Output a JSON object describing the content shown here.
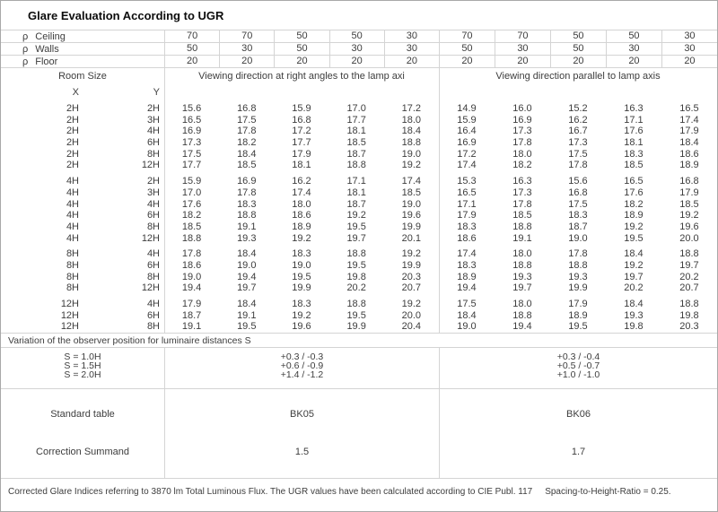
{
  "title": "Glare Evaluation According to UGR",
  "colors": {
    "border": "#d4d4d4",
    "outer_border": "#a8a8a8",
    "text": "#3d3d3d",
    "title_text": "#0d0d0d"
  },
  "reflectance": {
    "symbol": "ρ",
    "rows": [
      {
        "label": "Ceiling",
        "values": [
          "70",
          "70",
          "50",
          "50",
          "30",
          "70",
          "70",
          "50",
          "50",
          "30"
        ]
      },
      {
        "label": "Walls",
        "values": [
          "50",
          "30",
          "50",
          "30",
          "30",
          "50",
          "30",
          "50",
          "30",
          "30"
        ]
      },
      {
        "label": "Floor",
        "values": [
          "20",
          "20",
          "20",
          "20",
          "20",
          "20",
          "20",
          "20",
          "20",
          "20"
        ]
      }
    ]
  },
  "header": {
    "room_size": "Room Size",
    "x_label": "X",
    "y_label": "Y",
    "left_section_title": "Viewing direction at right angles to the lamp axi",
    "right_section_title": "Viewing direction parallel to lamp axis"
  },
  "ugr_groups": [
    {
      "rows": [
        {
          "x": "2H",
          "y": "2H",
          "ugr": [
            "15.6",
            "16.8",
            "15.9",
            "17.0",
            "17.2",
            "14.9",
            "16.0",
            "15.2",
            "16.3",
            "16.5"
          ]
        },
        {
          "x": "2H",
          "y": "3H",
          "ugr": [
            "16.5",
            "17.5",
            "16.8",
            "17.7",
            "18.0",
            "15.9",
            "16.9",
            "16.2",
            "17.1",
            "17.4"
          ]
        },
        {
          "x": "2H",
          "y": "4H",
          "ugr": [
            "16.9",
            "17.8",
            "17.2",
            "18.1",
            "18.4",
            "16.4",
            "17.3",
            "16.7",
            "17.6",
            "17.9"
          ]
        },
        {
          "x": "2H",
          "y": "6H",
          "ugr": [
            "17.3",
            "18.2",
            "17.7",
            "18.5",
            "18.8",
            "16.9",
            "17.8",
            "17.3",
            "18.1",
            "18.4"
          ]
        },
        {
          "x": "2H",
          "y": "8H",
          "ugr": [
            "17.5",
            "18.4",
            "17.9",
            "18.7",
            "19.0",
            "17.2",
            "18.0",
            "17.5",
            "18.3",
            "18.6"
          ]
        },
        {
          "x": "2H",
          "y": "12H",
          "ugr": [
            "17.7",
            "18.5",
            "18.1",
            "18.8",
            "19.2",
            "17.4",
            "18.2",
            "17.8",
            "18.5",
            "18.9"
          ]
        }
      ]
    },
    {
      "rows": [
        {
          "x": "4H",
          "y": "2H",
          "ugr": [
            "15.9",
            "16.9",
            "16.2",
            "17.1",
            "17.4",
            "15.3",
            "16.3",
            "15.6",
            "16.5",
            "16.8"
          ]
        },
        {
          "x": "4H",
          "y": "3H",
          "ugr": [
            "17.0",
            "17.8",
            "17.4",
            "18.1",
            "18.5",
            "16.5",
            "17.3",
            "16.8",
            "17.6",
            "17.9"
          ]
        },
        {
          "x": "4H",
          "y": "4H",
          "ugr": [
            "17.6",
            "18.3",
            "18.0",
            "18.7",
            "19.0",
            "17.1",
            "17.8",
            "17.5",
            "18.2",
            "18.5"
          ]
        },
        {
          "x": "4H",
          "y": "6H",
          "ugr": [
            "18.2",
            "18.8",
            "18.6",
            "19.2",
            "19.6",
            "17.9",
            "18.5",
            "18.3",
            "18.9",
            "19.2"
          ]
        },
        {
          "x": "4H",
          "y": "8H",
          "ugr": [
            "18.5",
            "19.1",
            "18.9",
            "19.5",
            "19.9",
            "18.3",
            "18.8",
            "18.7",
            "19.2",
            "19.6"
          ]
        },
        {
          "x": "4H",
          "y": "12H",
          "ugr": [
            "18.8",
            "19.3",
            "19.2",
            "19.7",
            "20.1",
            "18.6",
            "19.1",
            "19.0",
            "19.5",
            "20.0"
          ]
        }
      ]
    },
    {
      "rows": [
        {
          "x": "8H",
          "y": "4H",
          "ugr": [
            "17.8",
            "18.4",
            "18.3",
            "18.8",
            "19.2",
            "17.4",
            "18.0",
            "17.8",
            "18.4",
            "18.8"
          ]
        },
        {
          "x": "8H",
          "y": "6H",
          "ugr": [
            "18.6",
            "19.0",
            "19.0",
            "19.5",
            "19.9",
            "18.3",
            "18.8",
            "18.8",
            "19.2",
            "19.7"
          ]
        },
        {
          "x": "8H",
          "y": "8H",
          "ugr": [
            "19.0",
            "19.4",
            "19.5",
            "19.8",
            "20.3",
            "18.9",
            "19.3",
            "19.3",
            "19.7",
            "20.2"
          ]
        },
        {
          "x": "8H",
          "y": "12H",
          "ugr": [
            "19.4",
            "19.7",
            "19.9",
            "20.2",
            "20.7",
            "19.4",
            "19.7",
            "19.9",
            "20.2",
            "20.7"
          ]
        }
      ]
    },
    {
      "rows": [
        {
          "x": "12H",
          "y": "4H",
          "ugr": [
            "17.9",
            "18.4",
            "18.3",
            "18.8",
            "19.2",
            "17.5",
            "18.0",
            "17.9",
            "18.4",
            "18.8"
          ]
        },
        {
          "x": "12H",
          "y": "6H",
          "ugr": [
            "18.7",
            "19.1",
            "19.2",
            "19.5",
            "20.0",
            "18.4",
            "18.8",
            "18.9",
            "19.3",
            "19.8"
          ]
        },
        {
          "x": "12H",
          "y": "8H",
          "ugr": [
            "19.1",
            "19.5",
            "19.6",
            "19.9",
            "20.4",
            "19.0",
            "19.4",
            "19.5",
            "19.8",
            "20.3"
          ]
        }
      ]
    }
  ],
  "variation_title": "Variation of the observer position for luminaire distances S",
  "variation": {
    "spacing_labels": [
      "S = 1.0H",
      "S = 1.5H",
      "S = 2.0H"
    ],
    "left_values": [
      "+0.3 / -0.3",
      "+0.6 / -0.9",
      "+1.4 / -1.2"
    ],
    "right_values": [
      "+0.3 / -0.4",
      "+0.5 / -0.7",
      "+1.0 / -1.0"
    ]
  },
  "summary": {
    "standard_table_label": "Standard table",
    "standard_table_left": "BK05",
    "standard_table_right": "BK06",
    "correction_label": "Correction Summand",
    "correction_left": "1.5",
    "correction_right": "1.7"
  },
  "footer": {
    "note": "Corrected Glare Indices referring to 3870 lm Total Luminous Flux. The UGR values have been calculated according to CIE Publ. 117",
    "ratio": "Spacing-to-Height-Ratio = 0.25."
  }
}
